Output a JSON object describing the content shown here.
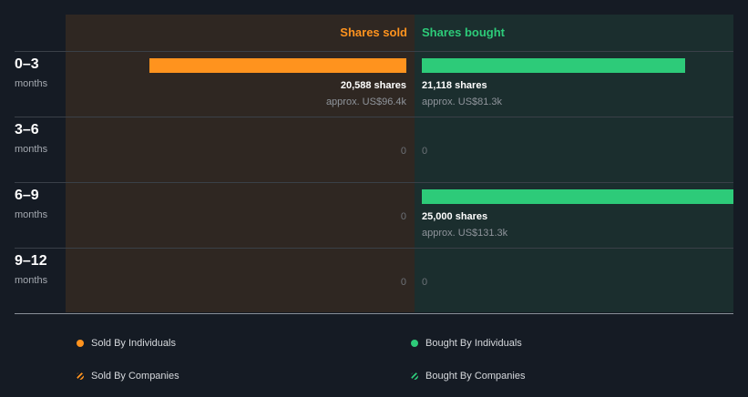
{
  "headers": {
    "sold": "Shares sold",
    "bought": "Shares bought"
  },
  "colors": {
    "sold": "#ff931e",
    "bought": "#2dcb79",
    "sold_panel": "#2f2722",
    "bought_panel": "#1b2e2e"
  },
  "chart_data": {
    "type": "bar",
    "title": "",
    "categories": [
      "0–3 months",
      "3–6 months",
      "6–9 months",
      "9–12 months"
    ],
    "periods": [
      {
        "label": "0–3",
        "unit": "months"
      },
      {
        "label": "3–6",
        "unit": "months"
      },
      {
        "label": "6–9",
        "unit": "months"
      },
      {
        "label": "9–12",
        "unit": "months"
      }
    ],
    "series": [
      {
        "name": "Shares sold",
        "values": [
          20588,
          0,
          0,
          0
        ]
      },
      {
        "name": "Shares bought",
        "values": [
          21118,
          0,
          25000,
          0
        ]
      }
    ],
    "value_labels": {
      "sold": [
        {
          "shares": "20,588 shares",
          "approx": "approx. US$96.4k"
        },
        {
          "zero": "0"
        },
        {
          "zero": "0"
        },
        {
          "zero": "0"
        }
      ],
      "bought": [
        {
          "shares": "21,118 shares",
          "approx": "approx. US$81.3k"
        },
        {
          "zero": "0"
        },
        {
          "shares": "25,000 shares",
          "approx": "approx. US$131.3k"
        },
        {
          "zero": "0"
        }
      ]
    },
    "max_value": 25000
  },
  "legend": [
    {
      "label": "Sold By Individuals",
      "style": "solid",
      "color": "#ff931e"
    },
    {
      "label": "Bought By Individuals",
      "style": "solid",
      "color": "#2dcb79"
    },
    {
      "label": "Sold By Companies",
      "style": "hatched",
      "color": "#ff931e"
    },
    {
      "label": "Bought By Companies",
      "style": "hatched",
      "color": "#2dcb79"
    }
  ]
}
